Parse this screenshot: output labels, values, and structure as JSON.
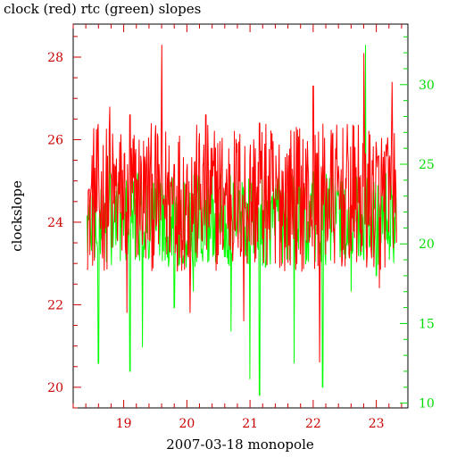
{
  "chart_data": {
    "type": "line",
    "title": "clock (red) rtc (green) slopes",
    "xlabel": "2007-03-18 monopole",
    "ylabel": "clockslope",
    "xlim": [
      18.2,
      23.5
    ],
    "ylim_left": [
      19.5,
      28.8
    ],
    "ylim_right": [
      9.7,
      33.8
    ],
    "x_ticks": [
      "19",
      "20",
      "21",
      "22",
      "23"
    ],
    "y_left_ticks": [
      "20",
      "22",
      "24",
      "26",
      "28"
    ],
    "y_right_ticks": [
      "10",
      "15",
      "20",
      "25",
      "30"
    ],
    "colors": {
      "clock": "#ff0000",
      "rtc": "#00ff00",
      "left_axis": "#cc0000",
      "right_axis": "#00dd00",
      "x_axis": "#cc0000"
    },
    "series": [
      {
        "axis": "left",
        "x_range": [
          18.42,
          23.32
        ],
        "samples": 560,
        "typical_range": [
          22.8,
          26.4
        ],
        "x": [
          18.45,
          18.62,
          18.78,
          19.05,
          19.1,
          19.25,
          19.4,
          19.6,
          19.8,
          20.05,
          20.3,
          20.6,
          20.9,
          21.15,
          21.4,
          21.7,
          22.0,
          22.1,
          22.3,
          22.6,
          22.8,
          23.05,
          23.25
        ],
        "y": [
          24.8,
          24.2,
          26.8,
          21.8,
          26.6,
          24.0,
          25.6,
          28.3,
          25.4,
          21.8,
          26.6,
          24.4,
          21.6,
          26.4,
          23.0,
          26.2,
          27.3,
          20.6,
          26.1,
          23.3,
          28.1,
          22.4,
          27.4
        ]
      },
      {
        "axis": "right",
        "x_range": [
          18.42,
          23.32
        ],
        "samples": 560,
        "typical_range": [
          18.5,
          24.5
        ],
        "x": [
          18.45,
          18.6,
          18.78,
          19.0,
          19.1,
          19.3,
          19.5,
          19.8,
          20.1,
          20.4,
          20.7,
          21.0,
          21.15,
          21.4,
          21.7,
          22.0,
          22.15,
          22.3,
          22.6,
          22.83,
          23.0,
          23.25
        ],
        "y": [
          21.5,
          12.5,
          26.6,
          20.5,
          12.0,
          13.5,
          23.5,
          16.0,
          17.0,
          24.5,
          14.5,
          11.5,
          10.5,
          23.5,
          12.5,
          24.5,
          11.0,
          25.5,
          17.0,
          32.5,
          18.0,
          23.0
        ]
      }
    ]
  }
}
